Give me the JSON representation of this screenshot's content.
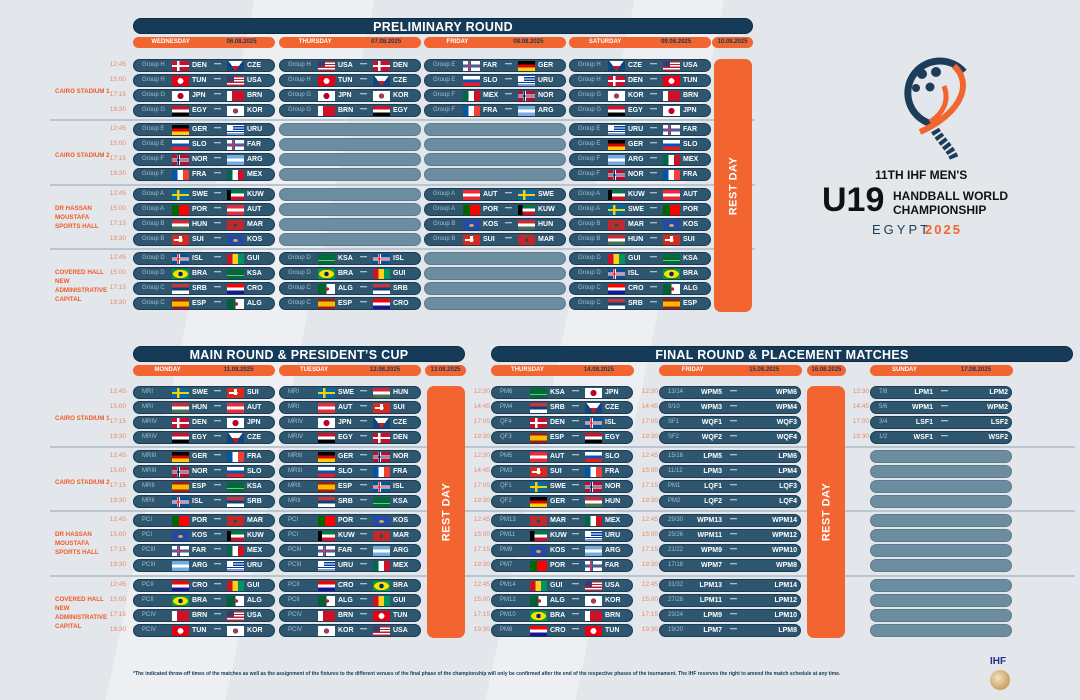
{
  "prelim": {
    "title": "PRELIMINARY ROUND",
    "days": [
      {
        "day": "WEDNESDAY",
        "date": "06.08.2025"
      },
      {
        "day": "THURSDAY",
        "date": "07.08.2025"
      },
      {
        "day": "FRIDAY",
        "date": "08.08.2025"
      },
      {
        "day": "SATURDAY",
        "date": "09.08.2025"
      }
    ],
    "rest_date": "10.08.2025",
    "rest_label": "REST DAY",
    "venues": [
      {
        "name": "CAIRO STADIUM 1"
      },
      {
        "name": "CAIRO STADIUM 2"
      },
      {
        "name": "DR HASSAN MOUSTAFA SPORTS HALL"
      },
      {
        "name": "COVERED HALL NEW ADMINISTRATIVE CAPITAL"
      }
    ],
    "times": [
      "12:45",
      "15:00",
      "17:15",
      "19:30"
    ],
    "columns": [
      {
        "matches": [
          {
            "g": "Group H",
            "h": "DEN",
            "a": "CZE"
          },
          {
            "g": "Group H",
            "h": "TUN",
            "a": "USA"
          },
          {
            "g": "Group G",
            "h": "JPN",
            "a": "BRN"
          },
          {
            "g": "Group G",
            "h": "EGY",
            "a": "KOR"
          },
          {
            "g": "Group E",
            "h": "GER",
            "a": "URU"
          },
          {
            "g": "Group E",
            "h": "SLO",
            "a": "FAR"
          },
          {
            "g": "Group F",
            "h": "NOR",
            "a": "ARG"
          },
          {
            "g": "Group F",
            "h": "FRA",
            "a": "MEX"
          },
          {
            "g": "Group A",
            "h": "SWE",
            "a": "KUW"
          },
          {
            "g": "Group A",
            "h": "POR",
            "a": "AUT"
          },
          {
            "g": "Group B",
            "h": "HUN",
            "a": "MAR"
          },
          {
            "g": "Group B",
            "h": "SUI",
            "a": "KOS"
          },
          {
            "g": "Group D",
            "h": "ISL",
            "a": "GUI"
          },
          {
            "g": "Group D",
            "h": "BRA",
            "a": "KSA"
          },
          {
            "g": "Group C",
            "h": "SRB",
            "a": "CRO"
          },
          {
            "g": "Group C",
            "h": "ESP",
            "a": "ALG"
          }
        ]
      },
      {
        "matches": [
          {
            "g": "Group H",
            "h": "USA",
            "a": "DEN"
          },
          {
            "g": "Group H",
            "h": "TUN",
            "a": "CZE"
          },
          {
            "g": "Group G",
            "h": "JPN",
            "a": "KOR"
          },
          {
            "g": "Group G",
            "h": "BRN",
            "a": "EGY"
          },
          null,
          null,
          null,
          null,
          null,
          null,
          null,
          null,
          {
            "g": "Group D",
            "h": "KSA",
            "a": "ISL"
          },
          {
            "g": "Group D",
            "h": "BRA",
            "a": "GUI"
          },
          {
            "g": "Group C",
            "h": "ALG",
            "a": "SRB"
          },
          {
            "g": "Group C",
            "h": "ESP",
            "a": "CRO"
          }
        ]
      },
      {
        "matches": [
          {
            "g": "Group E",
            "h": "FAR",
            "a": "GER"
          },
          {
            "g": "Group E",
            "h": "SLO",
            "a": "URU"
          },
          {
            "g": "Group F",
            "h": "MEX",
            "a": "NOR"
          },
          {
            "g": "Group F",
            "h": "FRA",
            "a": "ARG"
          },
          null,
          null,
          null,
          null,
          {
            "g": "Group A",
            "h": "AUT",
            "a": "SWE"
          },
          {
            "g": "Group A",
            "h": "POR",
            "a": "KUW"
          },
          {
            "g": "Group B",
            "h": "KOS",
            "a": "HUN"
          },
          {
            "g": "Group B",
            "h": "SUI",
            "a": "MAR"
          },
          null,
          null,
          null,
          null
        ]
      },
      {
        "matches": [
          {
            "g": "Group H",
            "h": "CZE",
            "a": "USA"
          },
          {
            "g": "Group H",
            "h": "DEN",
            "a": "TUN"
          },
          {
            "g": "Group G",
            "h": "KOR",
            "a": "BRN"
          },
          {
            "g": "Group G",
            "h": "EGY",
            "a": "JPN"
          },
          {
            "g": "Group E",
            "h": "URU",
            "a": "FAR"
          },
          {
            "g": "Group E",
            "h": "GER",
            "a": "SLO"
          },
          {
            "g": "Group F",
            "h": "ARG",
            "a": "MEX"
          },
          {
            "g": "Group F",
            "h": "NOR",
            "a": "FRA"
          },
          {
            "g": "Group A",
            "h": "KUW",
            "a": "AUT"
          },
          {
            "g": "Group A",
            "h": "SWE",
            "a": "POR"
          },
          {
            "g": "Group B",
            "h": "MAR",
            "a": "KOS"
          },
          {
            "g": "Group B",
            "h": "HUN",
            "a": "SUI"
          },
          {
            "g": "Group D",
            "h": "GUI",
            "a": "KSA"
          },
          {
            "g": "Group D",
            "h": "ISL",
            "a": "BRA"
          },
          {
            "g": "Group C",
            "h": "CRO",
            "a": "ALG"
          },
          {
            "g": "Group C",
            "h": "SRB",
            "a": "ESP"
          }
        ]
      }
    ]
  },
  "main": {
    "title": "MAIN ROUND & PRESIDENT’S CUP",
    "days": [
      {
        "day": "MONDAY",
        "date": "11.08.2025"
      },
      {
        "day": "TUESDAY",
        "date": "12.08.2025"
      }
    ],
    "rest_date": "13.08.2025",
    "rest_label": "REST DAY",
    "venues": [
      {
        "name": "CAIRO STADIUM 1"
      },
      {
        "name": "CAIRO STADIUM 2"
      },
      {
        "name": "DR HASSAN MOUSTAFA SPORTS HALL"
      },
      {
        "name": "COVERED HALL NEW ADMINISTRATIVE CAPITAL"
      }
    ],
    "times": [
      "12:45",
      "15:00",
      "17:15",
      "19:30"
    ],
    "columns": [
      {
        "matches": [
          {
            "g": "MRI",
            "h": "SWE",
            "a": "SUI"
          },
          {
            "g": "MRI",
            "h": "HUN",
            "a": "AUT"
          },
          {
            "g": "MRIV",
            "h": "DEN",
            "a": "JPN"
          },
          {
            "g": "MRIV",
            "h": "EGY",
            "a": "CZE"
          },
          {
            "g": "MRIII",
            "h": "GER",
            "a": "FRA"
          },
          {
            "g": "MRIII",
            "h": "NOR",
            "a": "SLO"
          },
          {
            "g": "MRII",
            "h": "ESP",
            "a": "KSA"
          },
          {
            "g": "MRII",
            "h": "ISL",
            "a": "SRB"
          },
          {
            "g": "PCI",
            "h": "POR",
            "a": "MAR"
          },
          {
            "g": "PCI",
            "h": "KOS",
            "a": "KUW"
          },
          {
            "g": "PCIII",
            "h": "FAR",
            "a": "MEX"
          },
          {
            "g": "PCIII",
            "h": "ARG",
            "a": "URU"
          },
          {
            "g": "PCII",
            "h": "CRO",
            "a": "GUI"
          },
          {
            "g": "PCII",
            "h": "BRA",
            "a": "ALG"
          },
          {
            "g": "PCIV",
            "h": "BRN",
            "a": "USA"
          },
          {
            "g": "PCIV",
            "h": "TUN",
            "a": "KOR"
          }
        ]
      },
      {
        "matches": [
          {
            "g": "MRI",
            "h": "SWE",
            "a": "HUN"
          },
          {
            "g": "MRI",
            "h": "AUT",
            "a": "SUI"
          },
          {
            "g": "MRIV",
            "h": "JPN",
            "a": "CZE"
          },
          {
            "g": "MRIV",
            "h": "EGY",
            "a": "DEN"
          },
          {
            "g": "MRIII",
            "h": "GER",
            "a": "NOR"
          },
          {
            "g": "MRIII",
            "h": "SLO",
            "a": "FRA"
          },
          {
            "g": "MRII",
            "h": "ESP",
            "a": "ISL"
          },
          {
            "g": "MRII",
            "h": "SRB",
            "a": "KSA"
          },
          {
            "g": "PCI",
            "h": "POR",
            "a": "KOS"
          },
          {
            "g": "PCI",
            "h": "KUW",
            "a": "MAR"
          },
          {
            "g": "PCIII",
            "h": "FAR",
            "a": "ARG"
          },
          {
            "g": "PCIII",
            "h": "URU",
            "a": "MEX"
          },
          {
            "g": "PCII",
            "h": "CRO",
            "a": "BRA"
          },
          {
            "g": "PCII",
            "h": "ALG",
            "a": "GUI"
          },
          {
            "g": "PCIV",
            "h": "BRN",
            "a": "TUN"
          },
          {
            "g": "PCIV",
            "h": "KOR",
            "a": "USA"
          }
        ]
      }
    ]
  },
  "final": {
    "title": "FINAL ROUND & PLACEMENT MATCHES",
    "days": [
      {
        "day": "THURSDAY",
        "date": "14.08.2025"
      },
      {
        "day": "FRIDAY",
        "date": "15.08.2025"
      },
      {
        "day": "SUNDAY",
        "date": "17.08.2025"
      }
    ],
    "rest_date": "16.08.2025",
    "rest_label": "REST DAY",
    "columns": [
      {
        "matches": [
          {
            "t": "12:30",
            "g": "PM6",
            "h": "KSA",
            "a": "JPN"
          },
          {
            "t": "14:45",
            "g": "PM4",
            "h": "SRB",
            "a": "CZE"
          },
          {
            "t": "17:00",
            "g": "QF4",
            "h": "DEN",
            "a": "ISL"
          },
          {
            "t": "19:30",
            "g": "QF3",
            "h": "ESP",
            "a": "EGY"
          },
          {
            "t": "12:30",
            "g": "PM5",
            "h": "AUT",
            "a": "SLO"
          },
          {
            "t": "14:45",
            "g": "PM3",
            "h": "SUI",
            "a": "FRA"
          },
          {
            "t": "17:00",
            "g": "QF1",
            "h": "SWE",
            "a": "NOR"
          },
          {
            "t": "19:30",
            "g": "QF2",
            "h": "GER",
            "a": "HUN"
          },
          {
            "t": "12:45",
            "g": "PM13",
            "h": "MAR",
            "a": "MEX"
          },
          {
            "t": "15:00",
            "g": "PM11",
            "h": "KUW",
            "a": "URU"
          },
          {
            "t": "17:15",
            "g": "PM9",
            "h": "KOS",
            "a": "ARG"
          },
          {
            "t": "19:30",
            "g": "PM7",
            "h": "POR",
            "a": "FAR"
          },
          {
            "t": "12:45",
            "g": "PM14",
            "h": "GUI",
            "a": "USA"
          },
          {
            "t": "15:00",
            "g": "PM12",
            "h": "ALG",
            "a": "KOR"
          },
          {
            "t": "17:15",
            "g": "PM10",
            "h": "BRA",
            "a": "BRN"
          },
          {
            "t": "19:30",
            "g": "PM8",
            "h": "CRO",
            "a": "TUN"
          }
        ]
      },
      {
        "matches": [
          {
            "t": "12:30",
            "g": "13/14",
            "h": "WPM5",
            "a": "WPM6"
          },
          {
            "t": "14:45",
            "g": "9/10",
            "h": "WPM3",
            "a": "WPM4"
          },
          {
            "t": "17:00",
            "g": "SF1",
            "h": "WQF1",
            "a": "WQF3"
          },
          {
            "t": "19:30",
            "g": "SF2",
            "h": "WQF2",
            "a": "WQF4"
          },
          {
            "t": "12:45",
            "g": "15/16",
            "h": "LPM5",
            "a": "LPM6"
          },
          {
            "t": "15:00",
            "g": "11/12",
            "h": "LPM3",
            "a": "LPM4"
          },
          {
            "t": "17:15",
            "g": "PM1",
            "h": "LQF1",
            "a": "LQF3"
          },
          {
            "t": "19:30",
            "g": "PM2",
            "h": "LQF2",
            "a": "LQF4"
          },
          {
            "t": "12:45",
            "g": "29/30",
            "h": "WPM13",
            "a": "WPM14"
          },
          {
            "t": "15:00",
            "g": "25/26",
            "h": "WPM11",
            "a": "WPM12"
          },
          {
            "t": "17:15",
            "g": "21/22",
            "h": "WPM9",
            "a": "WPM10"
          },
          {
            "t": "19:30",
            "g": "17/18",
            "h": "WPM7",
            "a": "WPM8"
          },
          {
            "t": "12:45",
            "g": "31/32",
            "h": "LPM13",
            "a": "LPM14"
          },
          {
            "t": "15:00",
            "g": "27/28",
            "h": "LPM11",
            "a": "LPM12"
          },
          {
            "t": "17:15",
            "g": "23/24",
            "h": "LPM9",
            "a": "LPM10"
          },
          {
            "t": "19:30",
            "g": "19/20",
            "h": "LPM7",
            "a": "LPM8"
          }
        ]
      },
      {
        "matches": [
          {
            "t": "12:30",
            "g": "7/8",
            "h": "LPM1",
            "a": "LPM2"
          },
          {
            "t": "14:45",
            "g": "5/6",
            "h": "WPM1",
            "a": "WPM2"
          },
          {
            "t": "17:00",
            "g": "3/4",
            "h": "LSF1",
            "a": "LSF2"
          },
          {
            "t": "19:30",
            "g": "1/2",
            "h": "WSF1",
            "a": "WSF2"
          },
          null,
          null,
          null,
          null,
          null,
          null,
          null,
          null,
          null,
          null,
          null,
          null
        ]
      }
    ]
  },
  "dash": "—",
  "logo": {
    "line1": "11TH IHF MEN'S",
    "big": "U19",
    "line2": "HANDBALL WORLD",
    "line3": "CHAMPIONSHIP",
    "country": "EGYPT",
    "year": "2025",
    "ihf": "IHF"
  },
  "colors": {
    "navy": "#163b58",
    "orange": "#f26531",
    "pill": "#2e566f"
  },
  "footnote": "*The indicated throw-off times of the matches as well as the assignment of the fixtures to the different venues of the final  phase of the championship will only be confirmed after the end of the respective phases of the tournament. The IHF reserves the right to amend the match schedule at any time."
}
